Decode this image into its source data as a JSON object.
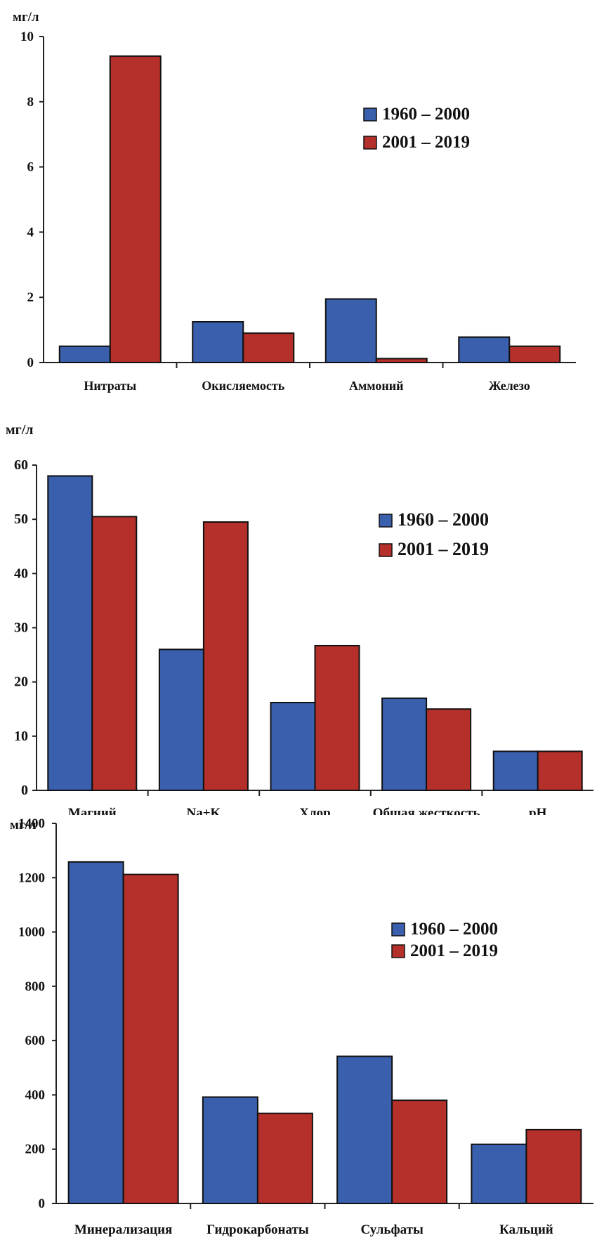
{
  "colors": {
    "series_1": "#3a5fad",
    "series_2": "#b5302a",
    "axis": "#222222"
  },
  "chart_data": [
    {
      "type": "bar",
      "ylabel": "мг/л",
      "ylim": [
        0,
        10
      ],
      "yticks": [
        "0",
        "2",
        "4",
        "6",
        "8",
        "10"
      ],
      "categories": [
        "Нитраты",
        "Окисляемость",
        "Аммоний",
        "Железо"
      ],
      "series": [
        {
          "name": "1960 – 2000",
          "values": [
            0.5,
            1.25,
            1.95,
            0.78
          ]
        },
        {
          "name": "2001 – 2019",
          "values": [
            9.4,
            0.9,
            0.12,
            0.5
          ]
        }
      ],
      "legend": "right"
    },
    {
      "type": "bar",
      "ylabel": "мг/л",
      "ylim": [
        0,
        60
      ],
      "yticks": [
        "0",
        "10",
        "20",
        "30",
        "40",
        "50",
        "60"
      ],
      "categories": [
        "Магний",
        "Na+K",
        "Хлор",
        "Общая жесткость",
        "pH"
      ],
      "series": [
        {
          "name": "1960 – 2000",
          "values": [
            58,
            26,
            16.2,
            17,
            7.2
          ]
        },
        {
          "name": "2001 – 2019",
          "values": [
            50.5,
            49.5,
            26.7,
            15,
            7.2
          ]
        }
      ],
      "legend": "right"
    },
    {
      "type": "bar",
      "ylabel": "мг/л",
      "ylim": [
        0,
        1400
      ],
      "yticks": [
        "0",
        "200",
        "400",
        "600",
        "800",
        "1000",
        "1200",
        "1400"
      ],
      "categories": [
        "Минерализация",
        "Гидрокарбонаты",
        "Сульфаты",
        "Кальций"
      ],
      "series": [
        {
          "name": "1960 – 2000",
          "values": [
            1258,
            392,
            542,
            218
          ]
        },
        {
          "name": "2001 – 2019",
          "values": [
            1212,
            332,
            380,
            272
          ]
        }
      ],
      "legend": "right"
    }
  ]
}
